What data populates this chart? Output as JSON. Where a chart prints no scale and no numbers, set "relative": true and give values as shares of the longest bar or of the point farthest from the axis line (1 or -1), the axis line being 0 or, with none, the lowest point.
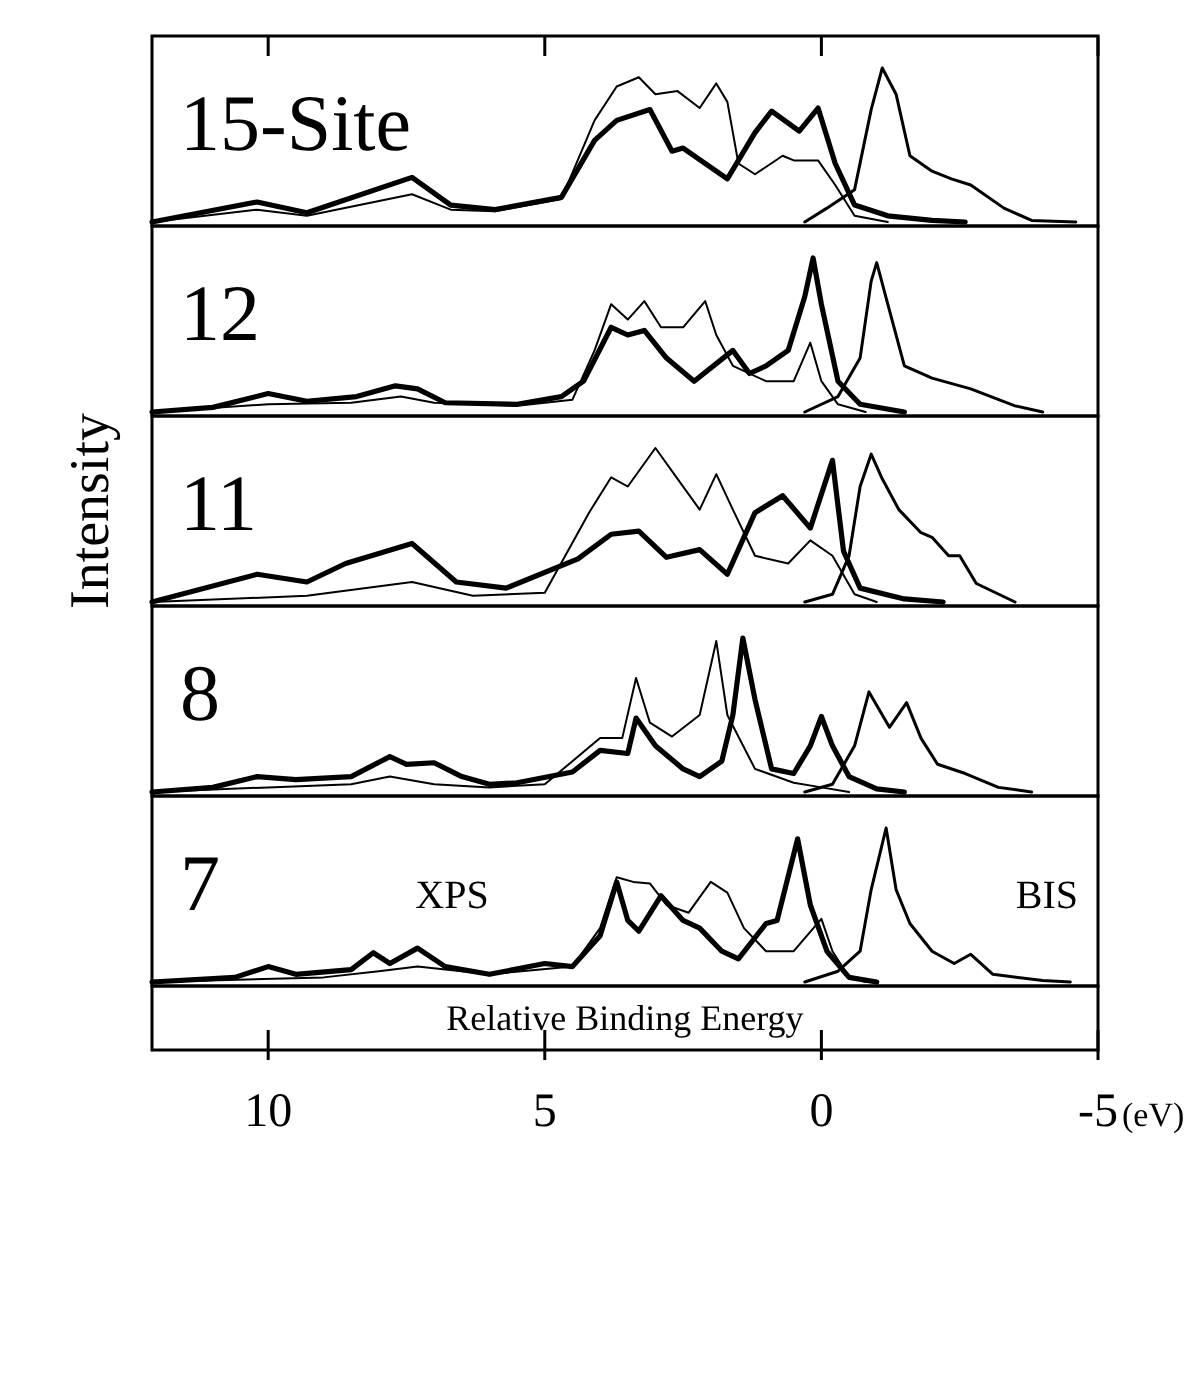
{
  "chart_data": [
    {
      "type": "line",
      "title": "15-Site",
      "relative": true,
      "tick_labels": false,
      "xlim": [
        12.1,
        -5
      ],
      "series": [
        {
          "color": "#000000",
          "x": [
            12.1,
            10.2,
            9.3,
            7.4,
            6.7,
            5.9,
            4.7,
            4.1,
            3.7,
            3.3,
            3.0,
            2.6,
            2.2,
            1.9,
            1.7,
            1.5,
            1.2,
            0.7,
            0.5,
            0.06,
            -0.25,
            -0.6,
            -1.2
          ],
          "values": [
            0,
            0.08,
            0.04,
            0.18,
            0.08,
            0.07,
            0.15,
            0.66,
            0.88,
            0.94,
            0.83,
            0.85,
            0.74,
            0.9,
            0.78,
            0.38,
            0.31,
            0.43,
            0.4,
            0.4,
            0.24,
            0.04,
            0
          ]
        },
        {
          "color": "#000000",
          "x": [
            12.1,
            10.2,
            9.3,
            7.4,
            6.7,
            5.9,
            4.7,
            4.1,
            3.7,
            3.1,
            2.7,
            2.5,
            1.7,
            1.2,
            0.9,
            0.4,
            0.06,
            -0.25,
            -0.6,
            -1.2,
            -2.0,
            -2.6
          ],
          "values": [
            0,
            0.13,
            0.06,
            0.29,
            0.11,
            0.08,
            0.16,
            0.53,
            0.66,
            0.73,
            0.46,
            0.48,
            0.28,
            0.58,
            0.72,
            0.59,
            0.74,
            0.38,
            0.11,
            0.04,
            0.01,
            0
          ]
        },
        {
          "color": "#000000",
          "x": [
            0.3,
            -0.1,
            -0.6,
            -0.9,
            -1.1,
            -1.35,
            -1.6,
            -2.0,
            -2.35,
            -2.7,
            -3.3,
            -3.8,
            -4.6
          ],
          "values": [
            0,
            0.09,
            0.21,
            0.73,
            1,
            0.83,
            0.43,
            0.33,
            0.28,
            0.24,
            0.09,
            0.01,
            0
          ]
        }
      ]
    },
    {
      "type": "line",
      "title": "12",
      "relative": true,
      "tick_labels": false,
      "xlim": [
        12.1,
        -5
      ],
      "series": [
        {
          "color": "#000000",
          "x": [
            12.1,
            10,
            8.5,
            7.6,
            7.0,
            5.5,
            4.5,
            4.1,
            3.8,
            3.5,
            3.2,
            2.9,
            2.5,
            2.1,
            1.9,
            1.6,
            1.0,
            0.5,
            0.2,
            0,
            -0.3,
            -0.8
          ],
          "values": [
            0,
            0.05,
            0.06,
            0.1,
            0.06,
            0.04,
            0.08,
            0.4,
            0.7,
            0.6,
            0.72,
            0.55,
            0.55,
            0.72,
            0.5,
            0.3,
            0.2,
            0.2,
            0.45,
            0.2,
            0.05,
            0
          ]
        },
        {
          "color": "#000000",
          "x": [
            12.1,
            11,
            10,
            9.3,
            8.4,
            7.7,
            7.3,
            6.8,
            5.5,
            4.7,
            4.3,
            3.8,
            3.5,
            3.2,
            2.8,
            2.3,
            1.6,
            1.3,
            1.0,
            0.6,
            0.3,
            0.15,
            0,
            -0.3,
            -0.7,
            -1.5
          ],
          "values": [
            0,
            0.03,
            0.12,
            0.07,
            0.1,
            0.17,
            0.15,
            0.06,
            0.05,
            0.1,
            0.2,
            0.55,
            0.5,
            0.53,
            0.35,
            0.2,
            0.4,
            0.25,
            0.3,
            0.4,
            0.75,
            1,
            0.7,
            0.2,
            0.05,
            0
          ]
        },
        {
          "color": "#000000",
          "x": [
            0.3,
            -0.3,
            -0.7,
            -0.9,
            -1.0,
            -1.2,
            -1.5,
            -2.0,
            -2.7,
            -3.5,
            -4.0
          ],
          "values": [
            0,
            0.1,
            0.35,
            0.85,
            0.97,
            0.7,
            0.3,
            0.22,
            0.15,
            0.04,
            0
          ]
        }
      ]
    },
    {
      "type": "line",
      "title": "11",
      "ylabel": "Intensity",
      "relative": true,
      "tick_labels": false,
      "xlim": [
        12.1,
        -5
      ],
      "series": [
        {
          "color": "#000000",
          "x": [
            12.1,
            9.3,
            7.4,
            6.3,
            5,
            4.2,
            3.8,
            3.5,
            3.0,
            2.6,
            2.2,
            1.9,
            1.6,
            1.2,
            0.6,
            0.2,
            -0.2,
            -0.6,
            -1
          ],
          "values": [
            0,
            0.04,
            0.13,
            0.04,
            0.06,
            0.58,
            0.81,
            0.75,
            1,
            0.8,
            0.6,
            0.83,
            0.6,
            0.3,
            0.25,
            0.4,
            0.3,
            0.05,
            0
          ]
        },
        {
          "color": "#000000",
          "x": [
            12.1,
            10.2,
            9.3,
            8.6,
            7.4,
            6.6,
            5.7,
            4.4,
            3.8,
            3.3,
            2.8,
            2.2,
            1.7,
            1.2,
            0.7,
            0.2,
            -0.2,
            -0.4,
            -0.7,
            -1.5,
            -2.2
          ],
          "values": [
            0,
            0.18,
            0.13,
            0.25,
            0.38,
            0.13,
            0.09,
            0.28,
            0.44,
            0.46,
            0.29,
            0.34,
            0.18,
            0.58,
            0.69,
            0.48,
            0.92,
            0.33,
            0.09,
            0.02,
            0
          ]
        },
        {
          "color": "#000000",
          "x": [
            0.3,
            -0.2,
            -0.5,
            -0.7,
            -0.9,
            -1.1,
            -1.4,
            -1.8,
            -2.0,
            -2.3,
            -2.5,
            -2.8,
            -3.5
          ],
          "values": [
            0,
            0.05,
            0.3,
            0.75,
            0.96,
            0.8,
            0.6,
            0.45,
            0.42,
            0.3,
            0.3,
            0.12,
            0
          ]
        }
      ]
    },
    {
      "type": "line",
      "title": "8",
      "relative": true,
      "tick_labels": false,
      "xlim": [
        12.1,
        -5
      ],
      "series": [
        {
          "color": "#000000",
          "x": [
            12.1,
            10,
            8.5,
            7.8,
            7,
            6,
            5,
            4.0,
            3.6,
            3.35,
            3.1,
            2.7,
            2.2,
            1.9,
            1.7,
            1.2,
            0.5,
            0,
            -0.5
          ],
          "values": [
            0,
            0.03,
            0.05,
            0.1,
            0.05,
            0.03,
            0.05,
            0.35,
            0.35,
            0.74,
            0.45,
            0.36,
            0.5,
            0.98,
            0.5,
            0.15,
            0.06,
            0.03,
            0
          ]
        },
        {
          "color": "#000000",
          "x": [
            12.1,
            11,
            10.2,
            9.5,
            8.5,
            7.8,
            7.5,
            7.0,
            6.5,
            6,
            5.5,
            4.5,
            4.0,
            3.5,
            3.35,
            3.0,
            2.5,
            2.2,
            1.8,
            1.6,
            1.42,
            1.2,
            0.9,
            0.5,
            0.2,
            0,
            -0.2,
            -0.5,
            -1,
            -1.5
          ],
          "values": [
            0,
            0.03,
            0.1,
            0.08,
            0.1,
            0.23,
            0.18,
            0.19,
            0.1,
            0.05,
            0.06,
            0.13,
            0.27,
            0.25,
            0.48,
            0.3,
            0.15,
            0.1,
            0.2,
            0.5,
            1,
            0.6,
            0.15,
            0.12,
            0.3,
            0.49,
            0.3,
            0.1,
            0.02,
            0
          ]
        },
        {
          "color": "#000000",
          "x": [
            0.3,
            -0.2,
            -0.6,
            -0.86,
            -1.23,
            -1.54,
            -1.8,
            -2.1,
            -2.6,
            -3.2,
            -3.8
          ],
          "values": [
            0,
            0.05,
            0.3,
            0.65,
            0.42,
            0.58,
            0.35,
            0.18,
            0.12,
            0.03,
            0
          ]
        }
      ]
    },
    {
      "type": "line",
      "title": "7",
      "xlabel": "Relative Binding Energy",
      "relative": true,
      "tick_labels": "x",
      "xlim": [
        12.1,
        -5
      ],
      "xticks": [
        10,
        5,
        0,
        -5
      ],
      "annotations": [
        "XPS",
        "BIS",
        "(eV)"
      ],
      "series": [
        {
          "color": "#000000",
          "x": [
            12.1,
            9,
            8,
            7.3,
            6,
            4.5,
            4.0,
            3.7,
            3.4,
            3.1,
            2.8,
            2.4,
            2.0,
            1.7,
            1.4,
            1.0,
            0.5,
            0,
            -0.2,
            -0.5,
            -0.8
          ],
          "values": [
            0,
            0.03,
            0.07,
            0.1,
            0.05,
            0.1,
            0.35,
            0.68,
            0.65,
            0.64,
            0.5,
            0.45,
            0.65,
            0.58,
            0.35,
            0.2,
            0.2,
            0.41,
            0.2,
            0.03,
            0
          ]
        },
        {
          "color": "#000000",
          "x": [
            12.1,
            10.6,
            10,
            9.5,
            8.5,
            8.1,
            7.8,
            7.3,
            6.8,
            6.0,
            5.0,
            4.5,
            4.0,
            3.7,
            3.5,
            3.3,
            2.9,
            2.5,
            2.2,
            1.8,
            1.5,
            1.0,
            0.8,
            0.43,
            0.2,
            -0.1,
            -0.5,
            -1
          ],
          "values": [
            0,
            0.03,
            0.1,
            0.05,
            0.08,
            0.19,
            0.12,
            0.22,
            0.1,
            0.05,
            0.12,
            0.1,
            0.3,
            0.65,
            0.4,
            0.33,
            0.56,
            0.4,
            0.35,
            0.2,
            0.15,
            0.38,
            0.4,
            0.93,
            0.5,
            0.2,
            0.03,
            0
          ]
        },
        {
          "color": "#000000",
          "x": [
            0.3,
            -0.3,
            -0.7,
            -0.9,
            -1.17,
            -1.35,
            -1.6,
            -2.0,
            -2.4,
            -2.7,
            -3.1,
            -4.0,
            -4.5
          ],
          "values": [
            0,
            0.07,
            0.2,
            0.6,
            1,
            0.6,
            0.38,
            0.2,
            0.12,
            0.18,
            0.05,
            0.01,
            0
          ]
        }
      ]
    }
  ]
}
